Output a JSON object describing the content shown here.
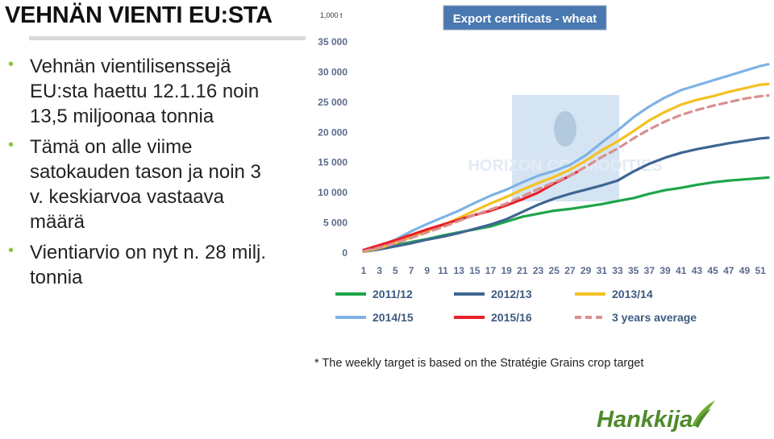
{
  "slide": {
    "title": "VEHNÄN VIENTI EU:STA",
    "bullets": [
      "Vehnän vientilisenssejä EU:sta haettu 12.1.16 noin 13,5 miljoonaa tonnia",
      "Tämä on alle viime satokauden tason ja noin 3 v. keskiarvoa vastaava määrä",
      "Vientiarvio on nyt n. 28 milj. tonnia"
    ],
    "logo_text": "Hankkija",
    "watermark": "HORIZON COMMODITIES"
  },
  "colors": {
    "bullet": "#8cc63f",
    "title_box": "#4a78b0",
    "axis_text": "#5b6b8c",
    "logo_green": "#4f8a2b"
  },
  "chart_data": {
    "type": "line",
    "title": "Export certificats - wheat",
    "unit_label": "1,000 t",
    "footnote": "* The weekly target is based on the Stratégie Grains crop target",
    "xlim": [
      1,
      52
    ],
    "ylim": [
      0,
      35000
    ],
    "x_ticks": [
      "1",
      "3",
      "5",
      "7",
      "9",
      "11",
      "13",
      "15",
      "17",
      "19",
      "21",
      "23",
      "25",
      "27",
      "29",
      "31",
      "33",
      "35",
      "37",
      "39",
      "41",
      "43",
      "45",
      "47",
      "49",
      "51"
    ],
    "y_ticks": [
      "0",
      "5 000",
      "10 000",
      "15 000",
      "20 000",
      "25 000",
      "30 000",
      "35 000"
    ],
    "grid": "none",
    "legend_position": "bottom",
    "series": [
      {
        "name": "2011/12",
        "color": "#1ea54a",
        "dash": false,
        "points": [
          [
            1,
            300
          ],
          [
            3,
            700
          ],
          [
            5,
            1300
          ],
          [
            7,
            1800
          ],
          [
            9,
            2300
          ],
          [
            11,
            2900
          ],
          [
            13,
            3400
          ],
          [
            15,
            3900
          ],
          [
            17,
            4400
          ],
          [
            19,
            5200
          ],
          [
            21,
            6000
          ],
          [
            23,
            6500
          ],
          [
            25,
            7000
          ],
          [
            27,
            7300
          ],
          [
            29,
            7700
          ],
          [
            31,
            8100
          ],
          [
            33,
            8600
          ],
          [
            35,
            9100
          ],
          [
            37,
            9800
          ],
          [
            39,
            10400
          ],
          [
            41,
            10800
          ],
          [
            43,
            11300
          ],
          [
            45,
            11700
          ],
          [
            47,
            12000
          ],
          [
            49,
            12200
          ],
          [
            51,
            12400
          ],
          [
            52,
            12500
          ]
        ]
      },
      {
        "name": "2012/13",
        "color": "#3e6593",
        "dash": false,
        "points": [
          [
            1,
            200
          ],
          [
            3,
            600
          ],
          [
            5,
            1100
          ],
          [
            7,
            1600
          ],
          [
            9,
            2200
          ],
          [
            11,
            2700
          ],
          [
            13,
            3300
          ],
          [
            15,
            4000
          ],
          [
            17,
            4700
          ],
          [
            19,
            5600
          ],
          [
            21,
            6800
          ],
          [
            23,
            8000
          ],
          [
            25,
            9000
          ],
          [
            27,
            9800
          ],
          [
            29,
            10500
          ],
          [
            31,
            11200
          ],
          [
            33,
            12000
          ],
          [
            35,
            13500
          ],
          [
            37,
            14800
          ],
          [
            39,
            15800
          ],
          [
            41,
            16600
          ],
          [
            43,
            17200
          ],
          [
            45,
            17700
          ],
          [
            47,
            18200
          ],
          [
            49,
            18600
          ],
          [
            51,
            19000
          ],
          [
            52,
            19100
          ]
        ]
      },
      {
        "name": "2013/14",
        "color": "#f5c022",
        "dash": false,
        "points": [
          [
            1,
            200
          ],
          [
            3,
            800
          ],
          [
            5,
            1600
          ],
          [
            7,
            2600
          ],
          [
            9,
            3600
          ],
          [
            11,
            4600
          ],
          [
            13,
            5800
          ],
          [
            15,
            7000
          ],
          [
            17,
            8200
          ],
          [
            19,
            9300
          ],
          [
            21,
            10500
          ],
          [
            23,
            11600
          ],
          [
            25,
            12600
          ],
          [
            27,
            13800
          ],
          [
            29,
            15300
          ],
          [
            31,
            17000
          ],
          [
            33,
            18500
          ],
          [
            35,
            20200
          ],
          [
            37,
            22000
          ],
          [
            39,
            23400
          ],
          [
            41,
            24600
          ],
          [
            43,
            25400
          ],
          [
            45,
            26000
          ],
          [
            47,
            26700
          ],
          [
            49,
            27300
          ],
          [
            51,
            27900
          ],
          [
            52,
            28000
          ]
        ]
      },
      {
        "name": "2014/15",
        "color": "#7fb2e5",
        "dash": false,
        "points": [
          [
            1,
            300
          ],
          [
            3,
            1200
          ],
          [
            5,
            2200
          ],
          [
            7,
            3600
          ],
          [
            9,
            4800
          ],
          [
            11,
            5900
          ],
          [
            13,
            7000
          ],
          [
            15,
            8300
          ],
          [
            17,
            9500
          ],
          [
            19,
            10500
          ],
          [
            21,
            11700
          ],
          [
            23,
            12800
          ],
          [
            25,
            13600
          ],
          [
            27,
            14600
          ],
          [
            29,
            16200
          ],
          [
            31,
            18300
          ],
          [
            33,
            20300
          ],
          [
            35,
            22500
          ],
          [
            37,
            24300
          ],
          [
            39,
            25800
          ],
          [
            41,
            27000
          ],
          [
            43,
            27800
          ],
          [
            45,
            28600
          ],
          [
            47,
            29400
          ],
          [
            49,
            30200
          ],
          [
            51,
            31000
          ],
          [
            52,
            31300
          ]
        ]
      },
      {
        "name": "2015/16",
        "color": "#e8202a",
        "dash": false,
        "points": [
          [
            1,
            500
          ],
          [
            3,
            1300
          ],
          [
            5,
            2100
          ],
          [
            7,
            3000
          ],
          [
            9,
            3900
          ],
          [
            11,
            4700
          ],
          [
            13,
            5500
          ],
          [
            15,
            6300
          ],
          [
            17,
            7000
          ],
          [
            19,
            7900
          ],
          [
            21,
            8900
          ],
          [
            23,
            10000
          ],
          [
            25,
            11500
          ],
          [
            27,
            12800
          ],
          [
            28,
            13500
          ]
        ]
      },
      {
        "name": "3 years average",
        "color": "#d99090",
        "dash": true,
        "points": [
          [
            1,
            300
          ],
          [
            3,
            900
          ],
          [
            5,
            1600
          ],
          [
            7,
            2500
          ],
          [
            9,
            3400
          ],
          [
            11,
            4300
          ],
          [
            13,
            5300
          ],
          [
            15,
            6300
          ],
          [
            17,
            7200
          ],
          [
            19,
            8200
          ],
          [
            21,
            9400
          ],
          [
            23,
            10600
          ],
          [
            25,
            11700
          ],
          [
            27,
            12800
          ],
          [
            29,
            14300
          ],
          [
            31,
            15900
          ],
          [
            33,
            17300
          ],
          [
            35,
            19000
          ],
          [
            37,
            20500
          ],
          [
            39,
            21800
          ],
          [
            41,
            22900
          ],
          [
            43,
            23700
          ],
          [
            45,
            24400
          ],
          [
            47,
            25000
          ],
          [
            49,
            25600
          ],
          [
            51,
            26000
          ],
          [
            52,
            26100
          ]
        ]
      }
    ]
  }
}
